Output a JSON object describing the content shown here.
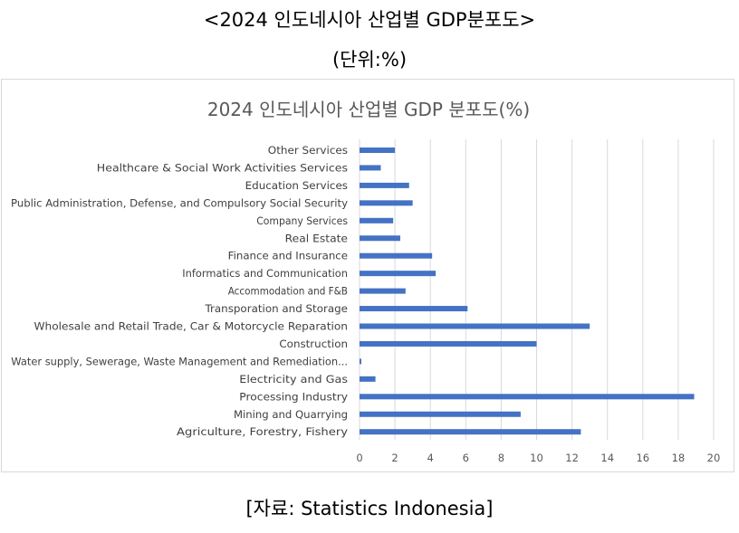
{
  "page": {
    "title": "<2024 인도네시아 산업별 GDP분포도>",
    "unit": "(단위:%)",
    "source": "[자료: Statistics Indonesia]"
  },
  "chart_data": {
    "type": "bar",
    "orientation": "horizontal",
    "title": "2024 인도네시아 산업별 GDP 분포도(%)",
    "xlabel": "",
    "ylabel": "",
    "xlim": [
      0,
      20
    ],
    "ticks": [
      0,
      2,
      4,
      6,
      8,
      10,
      12,
      14,
      16,
      18,
      20
    ],
    "grid": true,
    "bar_color": "#4472c4",
    "categories": [
      "Other Services",
      "Healthcare & Social Work Activities Services",
      "Education Services",
      "Public Administration, Defense, and Compulsory Social Security",
      "Company Services",
      "Real Estate",
      "Finance and Insurance",
      "Informatics and Communication",
      "Accommodation and F&B",
      "Transporation and Storage",
      "Wholesale and Retail Trade, Car & Motorcycle Reparation",
      "Construction",
      "Water supply, Sewerage, Waste Management and Remediation...",
      "Electricity and Gas",
      "Processing Industry",
      "Mining and Quarrying",
      "Agriculture, Forestry, Fishery"
    ],
    "values": [
      2.0,
      1.2,
      2.8,
      3.0,
      1.9,
      2.3,
      4.1,
      4.3,
      2.6,
      6.1,
      13.0,
      10.0,
      0.1,
      0.9,
      18.9,
      9.1,
      12.5
    ]
  }
}
